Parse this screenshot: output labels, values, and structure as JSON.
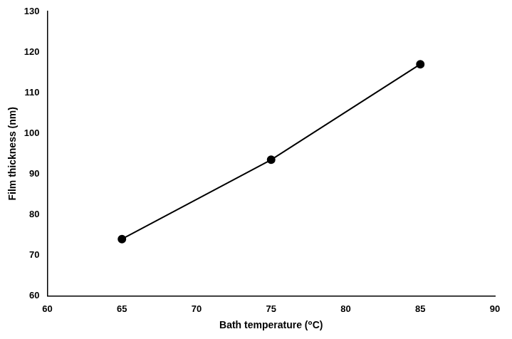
{
  "chart_data": {
    "type": "line",
    "x": [
      65,
      75,
      85
    ],
    "values": [
      74,
      93.5,
      117
    ],
    "xlim": [
      60,
      90
    ],
    "ylim": [
      60,
      130
    ],
    "xticks": [
      60,
      65,
      70,
      75,
      80,
      85,
      90
    ],
    "yticks": [
      60,
      70,
      80,
      90,
      100,
      110,
      120,
      130
    ],
    "xlabel": "Bath temperature (⁰C)",
    "ylabel": "Film thickness (nm)",
    "color": "#000000",
    "marker": "circle",
    "grid": false
  }
}
